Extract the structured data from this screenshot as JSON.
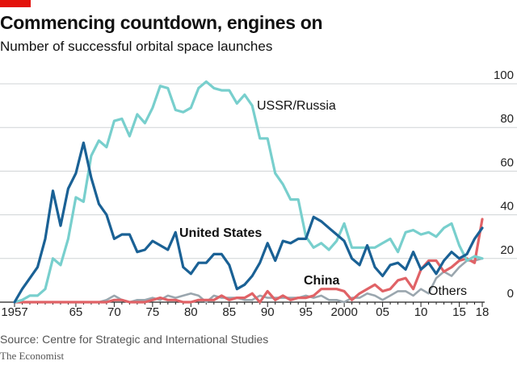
{
  "title": "Commencing countdown, engines on",
  "subtitle": "Number of successful orbital space launches",
  "source": "Source: Centre for Strategic and International Studies",
  "brand": "The Economist",
  "colors": {
    "accent": "#e3120b",
    "usa": "#1a6195",
    "ussr": "#78cfcd",
    "china": "#e06266",
    "others": "#9aa6ae",
    "grid": "#cfd3d5"
  },
  "chart_data": {
    "type": "line",
    "title": "Commencing countdown, engines on",
    "subtitle": "Number of successful orbital space launches",
    "xlim": [
      1957,
      2018
    ],
    "ylim": [
      0,
      100
    ],
    "y_axis_position": "right",
    "grid": true,
    "x_ticks": [
      {
        "value": 1957,
        "label": "1957"
      },
      {
        "value": 1965,
        "label": "65"
      },
      {
        "value": 1970,
        "label": "70"
      },
      {
        "value": 1975,
        "label": "75"
      },
      {
        "value": 1980,
        "label": "80"
      },
      {
        "value": 1985,
        "label": "85"
      },
      {
        "value": 1990,
        "label": "90"
      },
      {
        "value": 1995,
        "label": "95"
      },
      {
        "value": 2000,
        "label": "2000"
      },
      {
        "value": 2005,
        "label": "05"
      },
      {
        "value": 2010,
        "label": "10"
      },
      {
        "value": 2015,
        "label": "15"
      },
      {
        "value": 2018,
        "label": "18"
      }
    ],
    "y_ticks": [
      {
        "value": 0,
        "label": "0"
      },
      {
        "value": 20,
        "label": "20"
      },
      {
        "value": 40,
        "label": "40"
      },
      {
        "value": 60,
        "label": "60"
      },
      {
        "value": 80,
        "label": "80"
      },
      {
        "value": 100,
        "label": "100"
      }
    ],
    "x": [
      1957,
      1958,
      1959,
      1960,
      1961,
      1962,
      1963,
      1964,
      1965,
      1966,
      1967,
      1968,
      1969,
      1970,
      1971,
      1972,
      1973,
      1974,
      1975,
      1976,
      1977,
      1978,
      1979,
      1980,
      1981,
      1982,
      1983,
      1984,
      1985,
      1986,
      1987,
      1988,
      1989,
      1990,
      1991,
      1992,
      1993,
      1994,
      1995,
      1996,
      1997,
      1998,
      1999,
      2000,
      2001,
      2002,
      2003,
      2004,
      2005,
      2006,
      2007,
      2008,
      2009,
      2010,
      2011,
      2012,
      2013,
      2014,
      2015,
      2016,
      2017,
      2018
    ],
    "series": [
      {
        "key": "others",
        "name": "Others",
        "values": [
          0,
          0,
          0,
          0,
          0,
          0,
          0,
          0,
          0,
          0,
          0,
          0,
          1,
          3,
          1,
          0,
          1,
          1,
          2,
          1,
          3,
          2,
          3,
          4,
          3,
          0,
          3,
          2,
          2,
          2,
          1,
          1,
          3,
          2,
          2,
          2,
          2,
          2,
          3,
          2,
          3,
          1,
          1,
          0,
          2,
          2,
          4,
          3,
          1,
          3,
          5,
          5,
          3,
          6,
          4,
          11,
          14,
          12,
          16,
          19,
          19,
          20
        ]
      },
      {
        "key": "china",
        "name": "China",
        "values": [
          0,
          0,
          0,
          0,
          0,
          0,
          0,
          0,
          0,
          0,
          0,
          0,
          0,
          1,
          1,
          0,
          0,
          0,
          1,
          2,
          1,
          1,
          0,
          0,
          1,
          1,
          1,
          3,
          1,
          2,
          2,
          4,
          0,
          5,
          1,
          3,
          1,
          2,
          2,
          3,
          6,
          6,
          6,
          5,
          1,
          4,
          6,
          8,
          5,
          6,
          10,
          11,
          6,
          15,
          19,
          19,
          14,
          16,
          19,
          20,
          18,
          38
        ]
      },
      {
        "key": "ussr",
        "name": "USSR/Russia",
        "values": [
          0,
          1,
          3,
          3,
          6,
          20,
          17,
          29,
          48,
          46,
          67,
          74,
          71,
          83,
          84,
          76,
          86,
          82,
          89,
          99,
          98,
          88,
          87,
          89,
          98,
          101,
          98,
          97,
          97,
          91,
          95,
          90,
          75,
          75,
          59,
          54,
          47,
          47,
          30,
          25,
          27,
          24,
          28,
          36,
          25,
          25,
          25,
          25,
          27,
          29,
          23,
          32,
          33,
          31,
          32,
          30,
          34,
          36,
          26,
          19,
          21,
          20
        ]
      },
      {
        "key": "usa",
        "name": "United States",
        "values": [
          0,
          6,
          11,
          16,
          29,
          51,
          35,
          52,
          59,
          73,
          57,
          45,
          40,
          29,
          31,
          31,
          23,
          24,
          28,
          26,
          24,
          32,
          16,
          13,
          18,
          18,
          22,
          22,
          17,
          6,
          8,
          12,
          18,
          27,
          19,
          28,
          27,
          29,
          29,
          39,
          37,
          34,
          31,
          28,
          20,
          17,
          26,
          16,
          12,
          17,
          18,
          15,
          23,
          15,
          18,
          13,
          19,
          23,
          20,
          22,
          29,
          34
        ]
      }
    ],
    "labels": [
      {
        "key": "ussr",
        "text": "USSR/Russia",
        "bold": false
      },
      {
        "key": "usa",
        "text": "United States",
        "bold": true
      },
      {
        "key": "china",
        "text": "China",
        "bold": true
      },
      {
        "key": "others",
        "text": "Others",
        "bold": false
      }
    ]
  }
}
